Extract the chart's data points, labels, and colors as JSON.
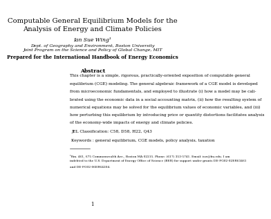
{
  "title_line1": "Computable General Equilibrium Models for the",
  "title_line2": "Analysis of Energy and Climate Policies",
  "author": "Ian Sue Wing¹",
  "affil1": "Dept. of Geography and Environment, Boston University",
  "affil2": "Joint Program on the Science and Policy of Global Change, MIT",
  "prepared": "Prepared for the International Handbook of Energy Economics",
  "abstract_title": "Abstract",
  "abstract_text": "This chapter is a simple, rigorous, practically-oriented exposition of computable general\nequilibrium (CGE) modeling. The general algebraic framework of a CGE model is developed\nfrom microeconomic fundamentals, and employed to illustrate (i) how a model may be cali-\nbrated using the economic data in a social accounting matrix, (ii) how the resulting system of\nnumerical equations may be solved for the equilibrium values of economic variables, and (iii)\nhow perturbing this equilibrium by introducing price or quantity distortions facilitates analysis\nof the economy-wide impacts of energy and climate policies.",
  "jel": "JEL Classification: C58, D58, H22, Q43",
  "keywords": "Keywords : general equilibrium, CGE models, policy analysis, taxation",
  "footnote": "¹Rm. 461, 675 Commonwealth Ave., Boston MA 02215. Phone: (617) 353-5741. Email: isw@bu.edu. I am\nindebted to the U.S. Department of Energy Office of Science (BER) for support under grants DE-FG02-02ER63461\nand DE-FG02-06ER64204.",
  "page_number": "1",
  "background_color": "#ffffff",
  "text_color": "#000000"
}
